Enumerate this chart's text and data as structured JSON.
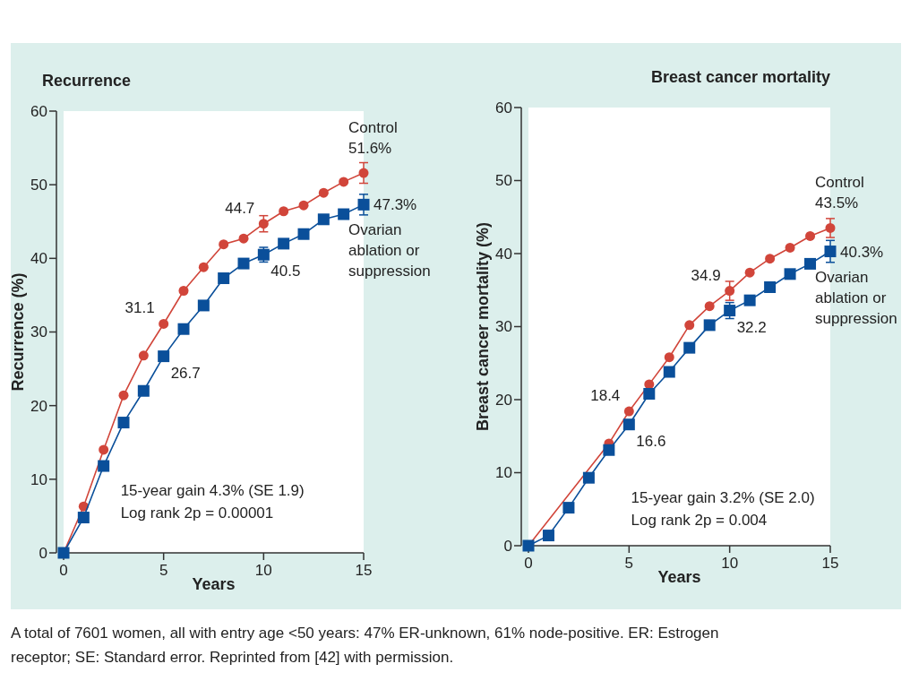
{
  "chart_data": [
    {
      "type": "line",
      "title": "Recurrence",
      "xlabel": "Years",
      "ylabel": "Recurrence (%)",
      "x": [
        0,
        1,
        2,
        3,
        4,
        5,
        6,
        7,
        8,
        9,
        10,
        11,
        12,
        13,
        14,
        15
      ],
      "xlim": [
        0,
        15
      ],
      "xticks": [
        0,
        5,
        10,
        15
      ],
      "ylim": [
        0,
        60
      ],
      "yticks": [
        0,
        10,
        20,
        30,
        40,
        50,
        60
      ],
      "grid": false,
      "legend": false,
      "series": [
        {
          "name": "Control",
          "color": "#d1453a",
          "marker": "circle",
          "values": [
            0,
            6.3,
            14.0,
            21.4,
            26.8,
            31.1,
            35.6,
            38.8,
            41.9,
            42.7,
            44.7,
            46.4,
            47.2,
            48.9,
            50.4,
            51.6
          ],
          "errors": [
            null,
            null,
            null,
            null,
            null,
            null,
            null,
            null,
            null,
            null,
            1.1,
            null,
            null,
            null,
            null,
            1.4
          ],
          "value_labels": [
            null,
            null,
            null,
            null,
            null,
            "31.1",
            null,
            null,
            null,
            null,
            "44.7",
            null,
            null,
            null,
            null,
            "51.6%"
          ]
        },
        {
          "name": "Ovarian ablation or suppression",
          "color": "#0a4f9a",
          "marker": "square",
          "values": [
            0,
            4.8,
            11.8,
            17.7,
            22.0,
            26.7,
            30.4,
            33.6,
            37.3,
            39.3,
            40.5,
            42.0,
            43.3,
            45.3,
            46.0,
            47.3
          ],
          "errors": [
            null,
            null,
            null,
            null,
            null,
            null,
            null,
            null,
            null,
            null,
            1.0,
            null,
            null,
            null,
            null,
            1.4
          ],
          "value_labels": [
            null,
            null,
            null,
            null,
            null,
            "26.7",
            null,
            null,
            null,
            null,
            "40.5",
            null,
            null,
            null,
            null,
            "47.3%"
          ]
        }
      ],
      "annotations": [
        "15-year gain 4.3% (SE 1.9)",
        "Log rank 2p = 0.00001",
        "A total of 7601 women, all with entry age <50 years: 47% ER-unknown, 61% node-positive. ER: Estrogen",
        "receptor; SE: Standard error. Reprinted from [42] with permission."
      ]
    },
    {
      "type": "line",
      "title": "Breast cancer mortality",
      "xlabel": "Years",
      "ylabel": "Breast cancer mortality (%)",
      "x": [
        0,
        1,
        2,
        3,
        4,
        5,
        6,
        7,
        8,
        9,
        10,
        11,
        12,
        13,
        14,
        15
      ],
      "xlim": [
        0,
        15
      ],
      "xticks": [
        0,
        5,
        10,
        15
      ],
      "ylim": [
        0,
        60
      ],
      "yticks": [
        0,
        10,
        20,
        30,
        40,
        50,
        60
      ],
      "grid": false,
      "legend": false,
      "series": [
        {
          "name": "Control",
          "color": "#d1453a",
          "marker": "circle",
          "values": [
            0,
            null,
            null,
            null,
            14.0,
            18.4,
            22.1,
            25.8,
            30.2,
            32.8,
            34.9,
            37.4,
            39.3,
            40.8,
            42.4,
            43.5
          ],
          "errors": [
            null,
            null,
            null,
            null,
            null,
            null,
            null,
            null,
            null,
            null,
            1.3,
            null,
            null,
            null,
            null,
            1.3
          ],
          "value_labels": [
            null,
            null,
            null,
            null,
            null,
            "18.4",
            null,
            null,
            null,
            null,
            "34.9",
            null,
            null,
            null,
            null,
            "43.5%"
          ]
        },
        {
          "name": "Ovarian ablation or suppression",
          "color": "#0a4f9a",
          "marker": "square",
          "values": [
            0,
            1.4,
            5.2,
            9.3,
            13.1,
            16.6,
            20.8,
            23.8,
            27.1,
            30.2,
            32.2,
            33.6,
            35.4,
            37.2,
            38.6,
            40.3
          ],
          "errors": [
            null,
            null,
            null,
            null,
            null,
            null,
            null,
            null,
            null,
            null,
            1.1,
            null,
            null,
            null,
            null,
            1.5
          ],
          "value_labels": [
            null,
            null,
            null,
            null,
            null,
            "16.6",
            null,
            null,
            null,
            null,
            "32.2",
            null,
            null,
            null,
            null,
            "40.3%"
          ]
        }
      ],
      "annotations": [
        "15-year gain 3.2% (SE 2.0)",
        "Log rank 2p = 0.004"
      ]
    }
  ]
}
